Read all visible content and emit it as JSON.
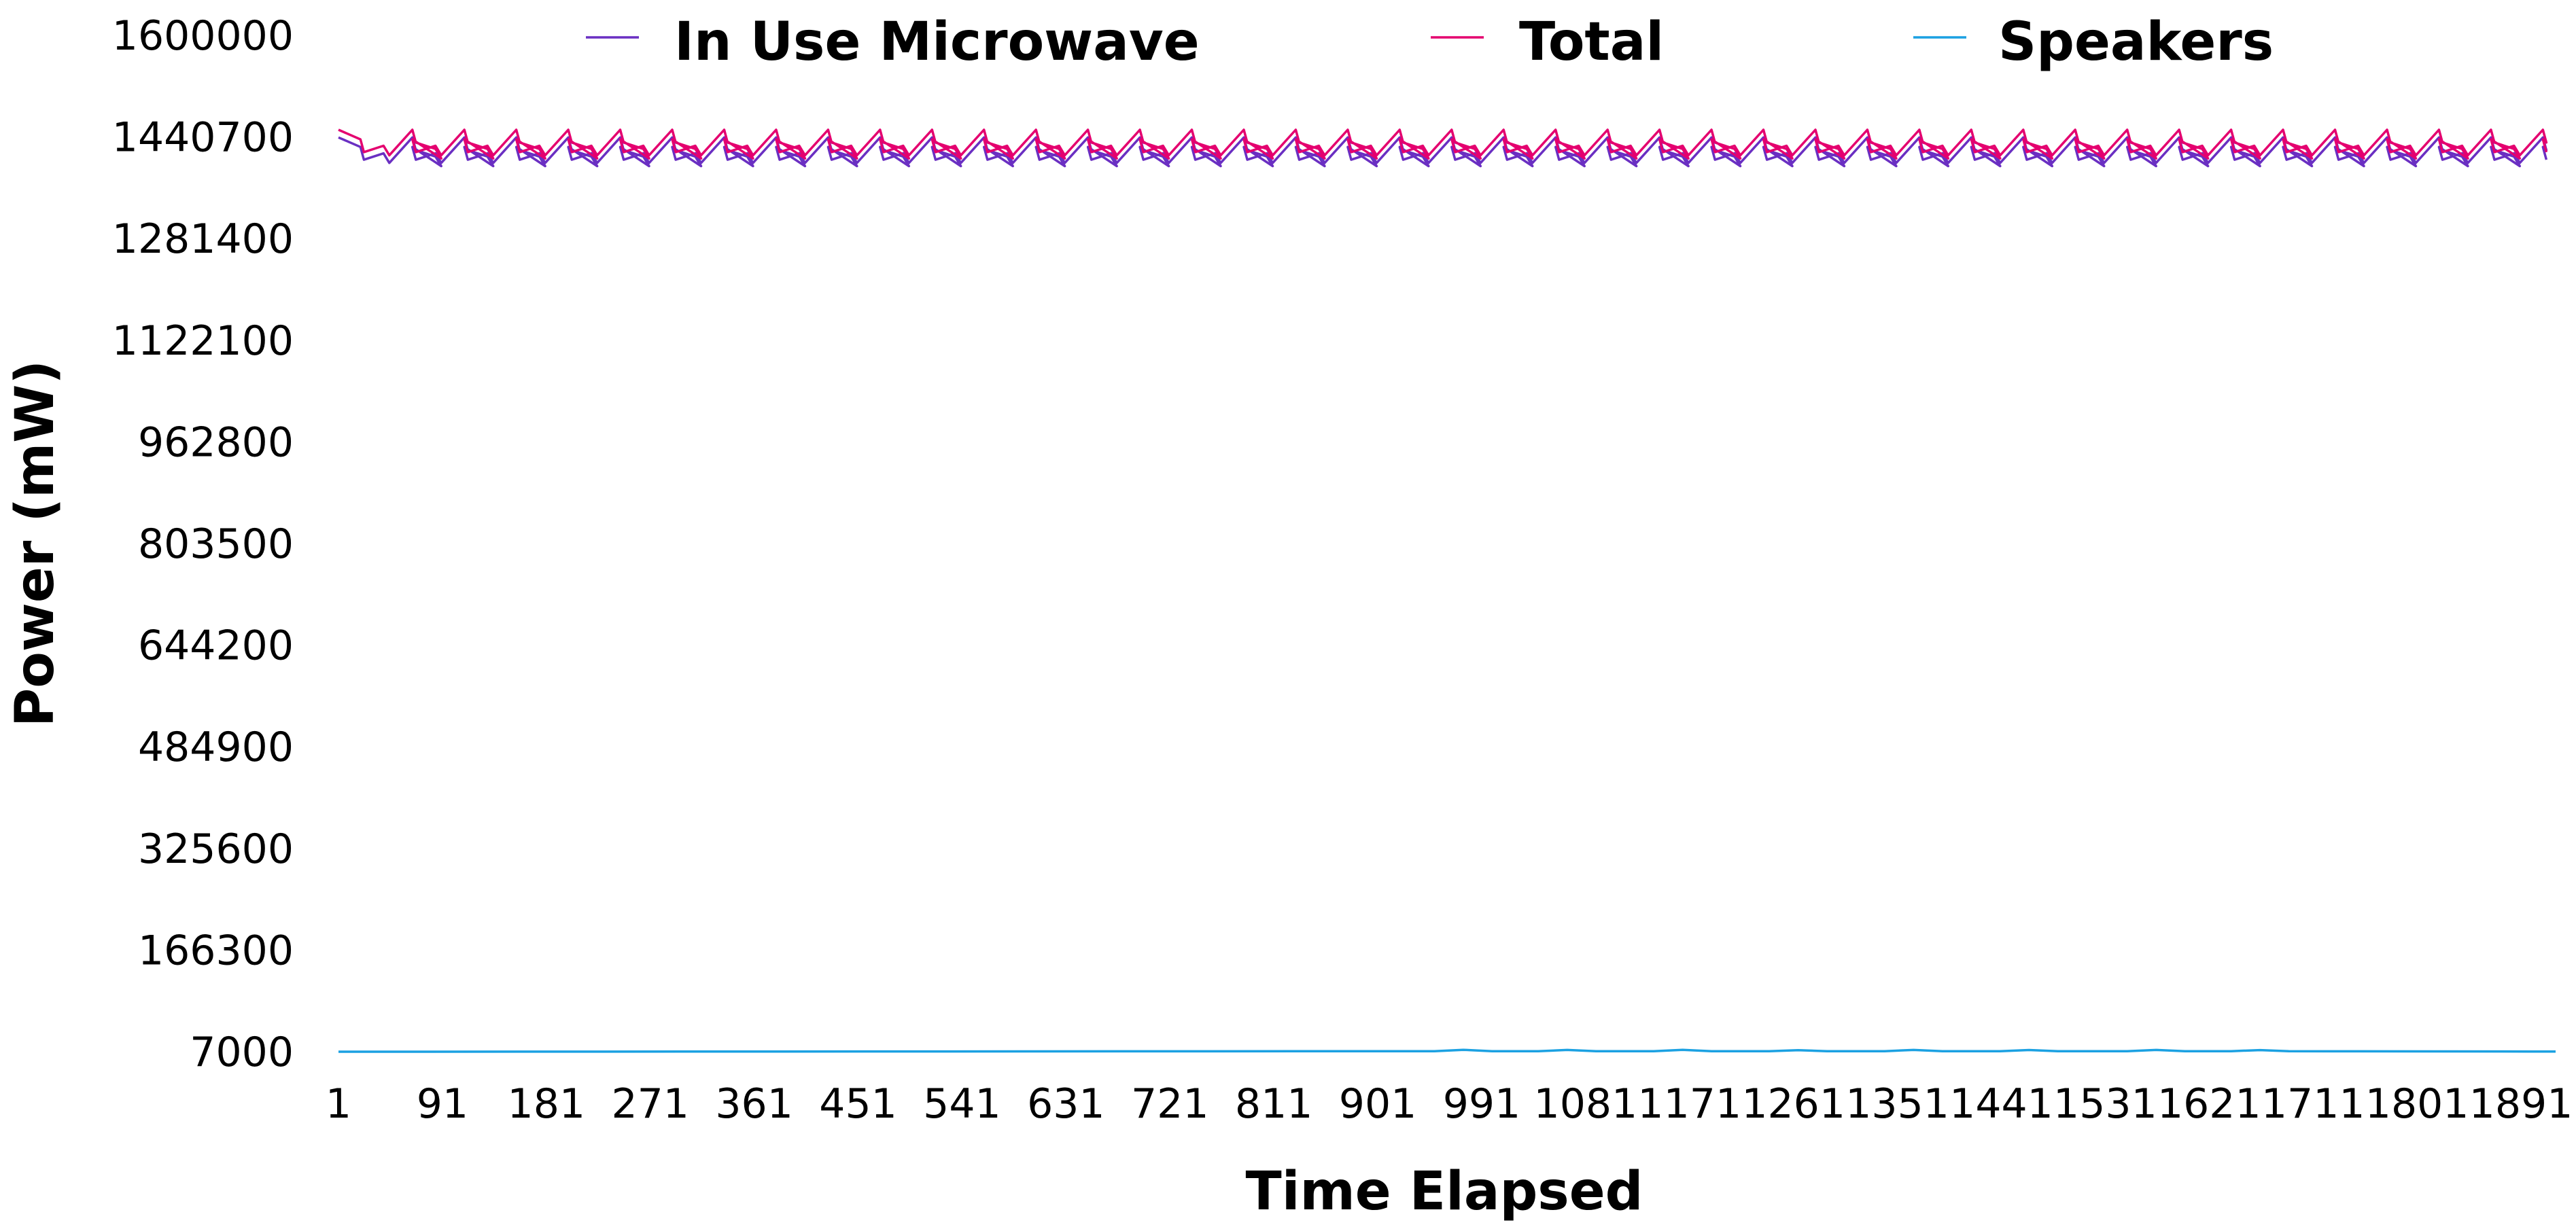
{
  "chart_data": {
    "type": "line",
    "title": "",
    "xlabel": "Time Elapsed",
    "ylabel": "Power (mW)",
    "ylim": [
      7000,
      1600000
    ],
    "y_ticks": [
      "1600000",
      "1440700",
      "1281400",
      "1122100",
      "962800",
      "803500",
      "644200",
      "484900",
      "325600",
      "166300",
      "7000"
    ],
    "y_tick_values": [
      1600000,
      1440700,
      1281400,
      1122100,
      962800,
      803500,
      644200,
      484900,
      325600,
      166300,
      7000
    ],
    "x_ticks": [
      "1",
      "91",
      "181",
      "271",
      "361",
      "451",
      "541",
      "631",
      "721",
      "811",
      "901",
      "991",
      "1081",
      "1171",
      "1261",
      "1351",
      "1441",
      "1531",
      "1621",
      "1711",
      "1801",
      "1891"
    ],
    "x_tick_values": [
      1,
      91,
      181,
      271,
      361,
      451,
      541,
      631,
      721,
      811,
      901,
      991,
      1081,
      1171,
      1261,
      1351,
      1441,
      1531,
      1621,
      1711,
      1801,
      1891
    ],
    "x_range": [
      1,
      1921
    ],
    "grid": false,
    "legend_position": "top",
    "sampling": "one reading per cycle segment; cycle period approximately 45 time units",
    "series": [
      {
        "name": "In Use Microwave",
        "color": "#6a2fc2",
        "cycle_period": 45,
        "x": [
          1,
          20,
          23,
          40,
          45,
          65,
          68,
          85,
          90
        ],
        "y": [
          1440000,
          1425000,
          1405000,
          1415000,
          1400000,
          1440000,
          1420000,
          1410000,
          1395000
        ]
      },
      {
        "name": "Total",
        "color": "#e4006f",
        "cycle_period": 45,
        "x": [
          1,
          20,
          23,
          40,
          45,
          65,
          68,
          85,
          90
        ],
        "y": [
          1452000,
          1437000,
          1417000,
          1427000,
          1412000,
          1452000,
          1432000,
          1422000,
          1407000
        ]
      },
      {
        "name": "Speakers",
        "color": "#1ba1e2",
        "x": [
          1,
          300,
          600,
          950,
          975,
          1000,
          1040,
          1065,
          1090,
          1140,
          1165,
          1190,
          1240,
          1265,
          1290,
          1340,
          1365,
          1390,
          1440,
          1465,
          1490,
          1550,
          1575,
          1600,
          1640,
          1665,
          1690,
          1750,
          1900,
          1921
        ],
        "y": [
          7000,
          7200,
          7500,
          7800,
          10000,
          7800,
          7800,
          9800,
          7800,
          7800,
          10000,
          7800,
          7800,
          9500,
          7800,
          7800,
          9800,
          7800,
          7800,
          9700,
          7800,
          7800,
          9800,
          7800,
          7800,
          9600,
          7800,
          7600,
          7300,
          7200
        ]
      }
    ]
  }
}
